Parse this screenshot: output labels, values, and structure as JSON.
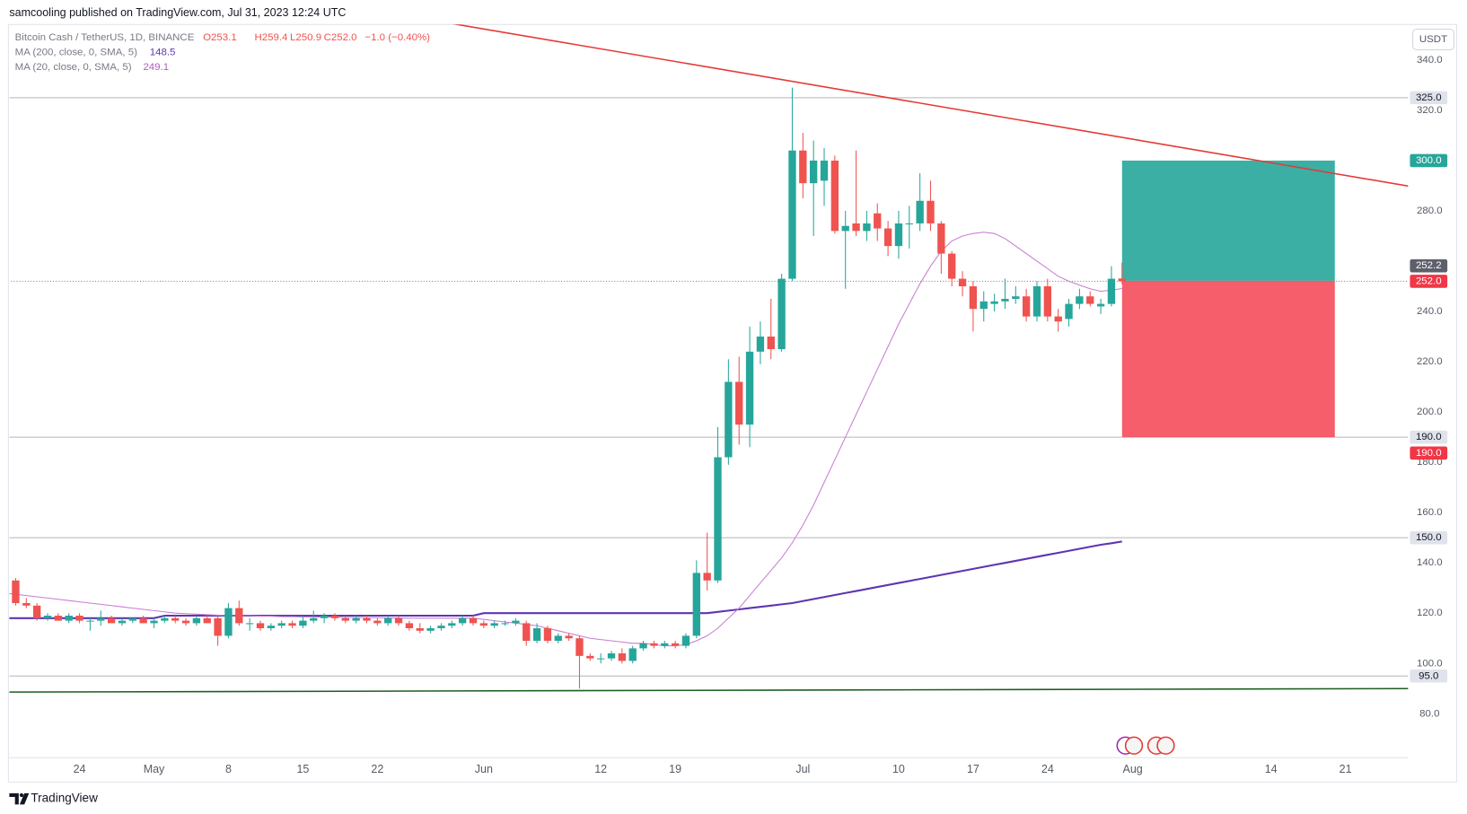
{
  "header": {
    "publisher": "samcooling published on TradingView.com, Jul 31, 2023 12:24 UTC"
  },
  "legend": {
    "symbol": "Bitcoin Cash / TetherUS, 1D, BINANCE",
    "ohlc": [
      "O253.1",
      "H259.4",
      "L250.9",
      "C252.0"
    ],
    "change": "−1.0 (−0.40%)"
  },
  "footer": {
    "brand": "TradingView"
  },
  "chart_data": {
    "type": "candlestick",
    "currency": "USDT",
    "categories": [
      null,
      null,
      null,
      null,
      null,
      null,
      null,
      "24",
      null,
      null,
      null,
      null,
      null,
      null,
      "May",
      null,
      null,
      null,
      null,
      null,
      null,
      "8",
      null,
      null,
      null,
      null,
      null,
      null,
      "15",
      null,
      null,
      null,
      null,
      null,
      null,
      "22",
      null,
      null,
      null,
      null,
      null,
      null,
      null,
      null,
      null,
      "Jun",
      null,
      null,
      null,
      null,
      null,
      null,
      null,
      null,
      null,
      null,
      "12",
      null,
      null,
      null,
      null,
      null,
      null,
      "19",
      null,
      null,
      null,
      null,
      null,
      null,
      null,
      null,
      null,
      null,
      null,
      "Jul",
      null,
      null,
      null,
      null,
      null,
      null,
      null,
      null,
      "10",
      null,
      null,
      null,
      null,
      null,
      null,
      "17",
      null,
      null,
      null,
      null,
      null,
      null,
      "24",
      null,
      null,
      null,
      null,
      null,
      null,
      null,
      "Aug",
      null,
      null,
      null,
      null,
      null,
      null,
      null,
      null,
      null,
      null,
      null,
      null,
      "14",
      null,
      null,
      null,
      null,
      null,
      null,
      "21",
      null,
      null,
      null,
      null,
      null,
      null
    ],
    "candles": {
      "open": [
        131,
        133,
        124,
        123,
        118,
        119,
        117,
        119,
        117,
        117,
        118,
        116,
        117,
        118,
        116,
        117,
        118,
        117,
        116,
        118,
        118,
        111,
        122,
        116,
        116,
        114,
        115,
        116,
        115,
        117,
        118,
        119,
        118,
        117,
        118,
        117,
        116,
        118,
        116,
        114,
        113,
        114,
        115,
        116,
        118,
        116,
        115,
        116,
        116,
        116,
        109,
        114,
        109,
        111,
        110,
        103,
        102,
        102,
        104,
        101,
        106,
        108,
        107,
        108,
        107,
        111,
        136,
        133,
        182,
        212,
        195,
        224,
        230,
        225,
        253,
        304,
        291,
        292,
        300,
        272,
        275,
        272,
        279,
        273,
        266,
        275,
        275,
        284,
        275,
        263,
        253,
        250,
        241,
        243,
        244,
        245,
        246,
        238,
        250,
        238,
        237,
        243,
        246,
        242,
        243,
        253.1,
        null,
        null,
        null,
        null,
        null,
        null,
        null,
        null,
        null,
        null,
        null,
        null,
        null,
        null,
        null,
        null,
        null,
        null,
        null,
        null,
        null,
        null,
        null,
        null,
        null,
        null,
        null
      ],
      "high": [
        134,
        134,
        126,
        124,
        120,
        120,
        120,
        120,
        118,
        121,
        119,
        118,
        118,
        119,
        118,
        119,
        119,
        118,
        119,
        119,
        119,
        124,
        125,
        118,
        117,
        116,
        117,
        117,
        119,
        121,
        120,
        120,
        119,
        119,
        119,
        118,
        119,
        119,
        117,
        116,
        115,
        116,
        117,
        119,
        119,
        117,
        117,
        117,
        118,
        117,
        116,
        115,
        112,
        112,
        111,
        104,
        104,
        105,
        106,
        107,
        109,
        109,
        109,
        109,
        112,
        141,
        152,
        194,
        221,
        222,
        234,
        236,
        245,
        255,
        329,
        311,
        308,
        305,
        302,
        280,
        304,
        280,
        283,
        276,
        280,
        282,
        295,
        292,
        276,
        264,
        256,
        252,
        248,
        247,
        253,
        250,
        249,
        252,
        253,
        241,
        245,
        249,
        248,
        245,
        258,
        259.4,
        null,
        null,
        null,
        null,
        null,
        null,
        null,
        null,
        null,
        null,
        null,
        null,
        null,
        null,
        null,
        null,
        null,
        null,
        null,
        null,
        null,
        null,
        null,
        null,
        null,
        null,
        null
      ],
      "low": [
        129,
        123,
        122,
        117,
        117,
        117,
        116,
        116,
        113,
        115,
        116,
        115,
        116,
        116,
        114,
        116,
        116,
        115,
        115,
        116,
        107,
        110,
        115,
        113,
        113,
        113,
        114,
        114,
        114,
        116,
        116,
        117,
        116,
        116,
        116,
        115,
        115,
        115,
        113,
        112,
        112,
        113,
        114,
        115,
        115,
        114,
        114,
        115,
        115,
        107,
        108,
        108,
        108,
        109,
        90,
        101,
        100,
        101,
        100,
        100,
        105,
        106,
        106,
        106,
        106,
        110,
        129,
        132,
        179,
        187,
        186,
        219,
        221,
        224,
        252,
        285,
        270,
        282,
        271,
        249,
        270,
        268,
        268,
        262,
        261,
        265,
        272,
        272,
        255,
        250,
        246,
        232,
        236,
        240,
        241,
        243,
        236,
        236,
        236,
        232,
        234,
        241,
        242,
        239,
        242,
        250.9,
        null,
        null,
        null,
        null,
        null,
        null,
        null,
        null,
        null,
        null,
        null,
        null,
        null,
        null,
        null,
        null,
        null,
        null,
        null,
        null,
        null,
        null,
        null,
        null,
        null,
        null,
        null
      ],
      "close": [
        133,
        124,
        123,
        118,
        119,
        117,
        119,
        117,
        117,
        118,
        116,
        117,
        118,
        116,
        117,
        118,
        117,
        116,
        118,
        116,
        111,
        122,
        116,
        116,
        114,
        115,
        116,
        115,
        117,
        118,
        119,
        118,
        117,
        118,
        117,
        116,
        118,
        116,
        114,
        113,
        114,
        115,
        116,
        118,
        116,
        115,
        116,
        116,
        117,
        109,
        114,
        109,
        111,
        110,
        103,
        102,
        102,
        104,
        101,
        106,
        108,
        107,
        108,
        107,
        111,
        136,
        133,
        182,
        212,
        195,
        224,
        230,
        225,
        253,
        304,
        291,
        300,
        300,
        272,
        274,
        272,
        275,
        273,
        266,
        275,
        275,
        284,
        275,
        263,
        253,
        250,
        241,
        244,
        244,
        245,
        246,
        238,
        250,
        238,
        236,
        243,
        246,
        243,
        243,
        253,
        252.0,
        null,
        null,
        null,
        null,
        null,
        null,
        null,
        null,
        null,
        null,
        null,
        null,
        null,
        null,
        null,
        null,
        null,
        null,
        null,
        null,
        null,
        null,
        null,
        null,
        null,
        null,
        null
      ]
    },
    "up_color": "#26a69a",
    "down_color": "#ef5350",
    "series": [
      {
        "name": "MA (200, close, 0, SMA, 5)",
        "color": "#5e35b1",
        "width": 2,
        "values": [
          118,
          118,
          118,
          118,
          118,
          118,
          118,
          118,
          118,
          118,
          118,
          118,
          118,
          118,
          118,
          119,
          119,
          119,
          119,
          119,
          119,
          119,
          119,
          119,
          119,
          119,
          119,
          119,
          119,
          119,
          119,
          119,
          119,
          119,
          119,
          119,
          119,
          119,
          119,
          119,
          119,
          119,
          119,
          119,
          119,
          120,
          120,
          120,
          120,
          120,
          120,
          120,
          120,
          120,
          120,
          120,
          120,
          120,
          120,
          120,
          120,
          120,
          120,
          120,
          120,
          120,
          120,
          120.5,
          121,
          121.5,
          122,
          122.5,
          123,
          123.5,
          124,
          124.8,
          125.6,
          126.4,
          127.2,
          128,
          128.8,
          129.6,
          130.4,
          131.2,
          132,
          132.8,
          133.6,
          134.4,
          135.2,
          136,
          136.8,
          137.6,
          138.4,
          139.2,
          140,
          140.8,
          141.6,
          142.4,
          143.2,
          144,
          144.8,
          145.6,
          146.4,
          147.2,
          147.8,
          148.5,
          null,
          null,
          null,
          null,
          null,
          null,
          null,
          null,
          null,
          null,
          null,
          null,
          null,
          null,
          null,
          null,
          null,
          null,
          null,
          null,
          null,
          null,
          null,
          null,
          null,
          null,
          null
        ]
      },
      {
        "name": "MA (20, close, 0, SMA, 5)",
        "color": "#c77dd1",
        "width": 1,
        "values": [
          128,
          127.5,
          127,
          126.5,
          126,
          125.5,
          125,
          124.5,
          124,
          123.5,
          123,
          122.5,
          122,
          121.5,
          121,
          120.5,
          120,
          119.8,
          119.6,
          119.4,
          119.2,
          119,
          119,
          119,
          118.8,
          118.8,
          118.6,
          118.6,
          118.5,
          118.5,
          118.4,
          118.4,
          118.3,
          118.3,
          118.2,
          118.2,
          118.1,
          118.1,
          118,
          118,
          118,
          118,
          118,
          118,
          118,
          117.5,
          117,
          116.5,
          116,
          115.5,
          115,
          114,
          113,
          112,
          111,
          110,
          109.5,
          109,
          108.5,
          108,
          108,
          107.5,
          107,
          107,
          107.5,
          109,
          111,
          114,
          118,
          122,
          127,
          132,
          137,
          142,
          148,
          155,
          163,
          172,
          181,
          190,
          199,
          208,
          217,
          226,
          235,
          243,
          251,
          258,
          264,
          268,
          270,
          271,
          271.5,
          271,
          269,
          266,
          263,
          260,
          257,
          254,
          252,
          250.5,
          249,
          248,
          248.5,
          249.1,
          null,
          null,
          null,
          null,
          null,
          null,
          null,
          null,
          null,
          null,
          null,
          null,
          null,
          null,
          null,
          null,
          null,
          null,
          null,
          null,
          null,
          null,
          null,
          null,
          null,
          null,
          null
        ]
      }
    ],
    "ylim": [
      53.2,
      354.5
    ],
    "yticks": [
      {
        "value": 340,
        "label": "340.0"
      },
      {
        "value": 320,
        "label": "320.0"
      },
      {
        "value": 280,
        "label": "280.0"
      },
      {
        "value": 240,
        "label": "240.0"
      },
      {
        "value": 220,
        "label": "220.0"
      },
      {
        "value": 200,
        "label": "200.0"
      },
      {
        "value": 180,
        "label": "180.0"
      },
      {
        "value": 160,
        "label": "160.0"
      },
      {
        "value": 140,
        "label": "140.0"
      },
      {
        "value": 120,
        "label": "120.0"
      },
      {
        "value": 100,
        "label": "100.0"
      },
      {
        "value": 80,
        "label": "80.0"
      }
    ],
    "grid": false,
    "trend_line": {
      "color": "#e53935",
      "from_index": 42,
      "to_index": 132,
      "values": [
        354.5,
        289.8
      ]
    },
    "support_line": {
      "color": "#1b5e20",
      "from_index": 0,
      "to_index": 132,
      "values": [
        88.6,
        90
      ]
    },
    "levels": [
      {
        "value": 325,
        "label": "325.0"
      },
      {
        "value": 190,
        "label": "190.0"
      },
      {
        "value": 150,
        "label": "150.0"
      },
      {
        "value": 95,
        "label": "95.0"
      }
    ],
    "level_color": "#b2b5be",
    "last_price": {
      "value": 252,
      "label": "252.0",
      "color": "#f23645"
    },
    "position": {
      "from_index": 105,
      "to_index": 125,
      "target": {
        "value": 300,
        "label": "300.0"
      },
      "entry": {
        "value": 252.2,
        "label": "252.2"
      },
      "stop": {
        "value": 190,
        "label": "190.0"
      },
      "profit_color": "#26a69a",
      "loss_color": "#f23645"
    }
  }
}
